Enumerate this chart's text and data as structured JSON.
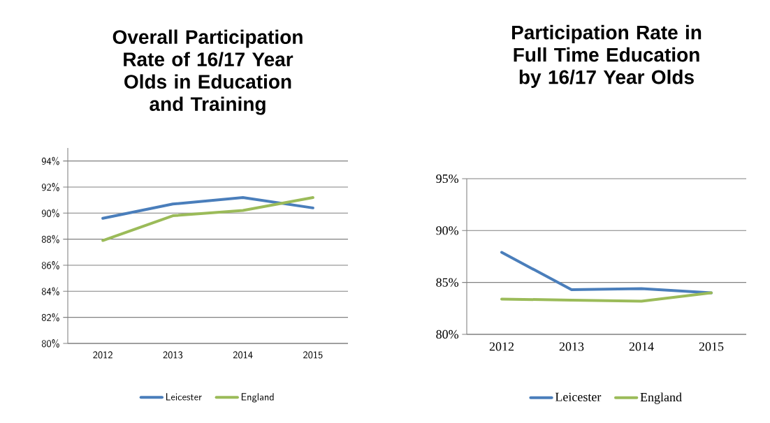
{
  "chart_data": [
    {
      "type": "line",
      "title": "Overall Participation Rate of 16/17 Year Olds in Education and Training",
      "categories": [
        "2012",
        "2013",
        "2014",
        "2015"
      ],
      "series": [
        {
          "name": "Leicester",
          "color": "#4a7ebb",
          "values": [
            89.6,
            90.7,
            91.2,
            90.4
          ]
        },
        {
          "name": "England",
          "color": "#9bbb59",
          "values": [
            87.9,
            89.8,
            90.2,
            91.2
          ]
        }
      ],
      "ylim": [
        80,
        95
      ],
      "yticks": [
        {
          "value": 80,
          "label": "80%"
        },
        {
          "value": 82,
          "label": "82%"
        },
        {
          "value": 84,
          "label": "84%"
        },
        {
          "value": 86,
          "label": "86%"
        },
        {
          "value": 88,
          "label": "88%"
        },
        {
          "value": 90,
          "label": "90%"
        },
        {
          "value": 92,
          "label": "92%"
        },
        {
          "value": 94,
          "label": "94%"
        }
      ],
      "grid": "y",
      "legend": "bottom"
    },
    {
      "type": "line",
      "title": "Participation Rate in Full Time Education by 16/17 Year Olds",
      "categories": [
        "2012",
        "2013",
        "2014",
        "2015"
      ],
      "series": [
        {
          "name": "Leicester",
          "color": "#4a7ebb",
          "values": [
            87.9,
            84.3,
            84.4,
            84.0
          ]
        },
        {
          "name": "England",
          "color": "#9bbb59",
          "values": [
            83.4,
            83.3,
            83.2,
            84.0
          ]
        }
      ],
      "ylim": [
        80,
        95
      ],
      "yticks": [
        {
          "value": 80,
          "label": "80%"
        },
        {
          "value": 85,
          "label": "85%"
        },
        {
          "value": 90,
          "label": "90%"
        },
        {
          "value": 95,
          "label": "95%"
        }
      ],
      "grid": "y",
      "legend": "bottom"
    }
  ]
}
